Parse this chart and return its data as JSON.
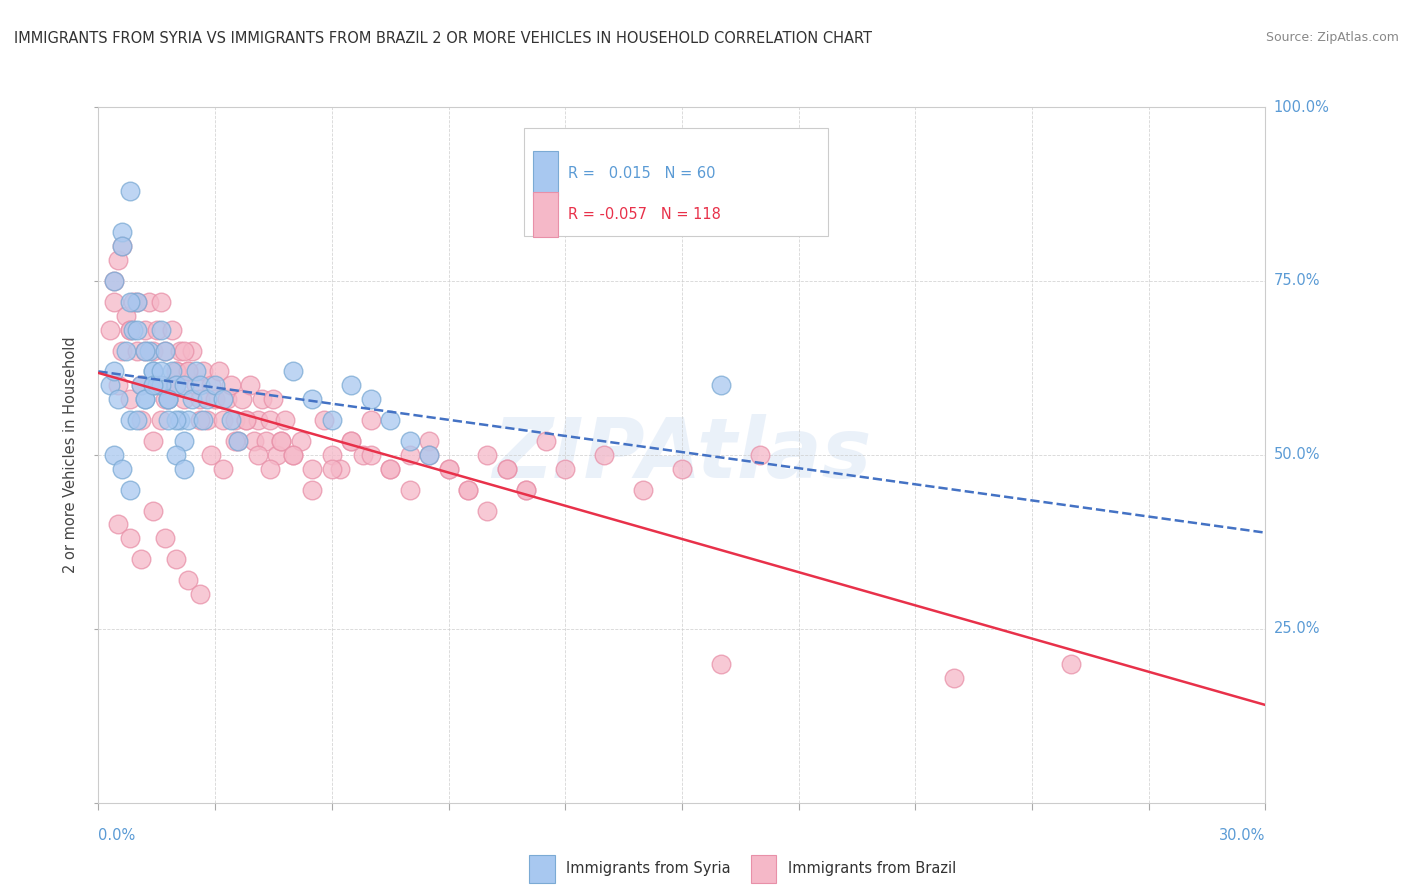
{
  "title": "IMMIGRANTS FROM SYRIA VS IMMIGRANTS FROM BRAZIL 2 OR MORE VEHICLES IN HOUSEHOLD CORRELATION CHART",
  "source": "Source: ZipAtlas.com",
  "xmin": 0.0,
  "xmax": 0.3,
  "ymin": 0.0,
  "ymax": 1.0,
  "syria_color": "#a8c8f0",
  "brazil_color": "#f5b8c8",
  "syria_edge_color": "#7baad4",
  "brazil_edge_color": "#e890a8",
  "syria_line_color": "#4472c4",
  "brazil_line_color": "#e8314a",
  "syria_R": 0.015,
  "syria_N": 60,
  "brazil_R": -0.057,
  "brazil_N": 118,
  "watermark": "ZIPAtlas",
  "syria_points_x": [
    0.003,
    0.004,
    0.005,
    0.006,
    0.007,
    0.008,
    0.009,
    0.01,
    0.011,
    0.012,
    0.013,
    0.014,
    0.015,
    0.016,
    0.017,
    0.018,
    0.019,
    0.02,
    0.021,
    0.022,
    0.023,
    0.024,
    0.025,
    0.026,
    0.027,
    0.028,
    0.03,
    0.032,
    0.034,
    0.036,
    0.004,
    0.006,
    0.008,
    0.01,
    0.012,
    0.014,
    0.016,
    0.018,
    0.02,
    0.022,
    0.004,
    0.006,
    0.008,
    0.01,
    0.012,
    0.014,
    0.016,
    0.018,
    0.02,
    0.022,
    0.05,
    0.055,
    0.06,
    0.065,
    0.07,
    0.075,
    0.08,
    0.085,
    0.16,
    0.008
  ],
  "syria_points_y": [
    0.6,
    0.62,
    0.58,
    0.82,
    0.65,
    0.55,
    0.68,
    0.72,
    0.6,
    0.58,
    0.65,
    0.62,
    0.6,
    0.68,
    0.65,
    0.58,
    0.62,
    0.6,
    0.55,
    0.6,
    0.55,
    0.58,
    0.62,
    0.6,
    0.55,
    0.58,
    0.6,
    0.58,
    0.55,
    0.52,
    0.75,
    0.8,
    0.72,
    0.68,
    0.65,
    0.62,
    0.6,
    0.58,
    0.55,
    0.52,
    0.5,
    0.48,
    0.45,
    0.55,
    0.58,
    0.6,
    0.62,
    0.55,
    0.5,
    0.48,
    0.62,
    0.58,
    0.55,
    0.6,
    0.58,
    0.55,
    0.52,
    0.5,
    0.6,
    0.88
  ],
  "brazil_points_x": [
    0.003,
    0.004,
    0.005,
    0.006,
    0.007,
    0.008,
    0.009,
    0.01,
    0.011,
    0.012,
    0.013,
    0.014,
    0.015,
    0.016,
    0.017,
    0.018,
    0.019,
    0.02,
    0.021,
    0.022,
    0.023,
    0.024,
    0.025,
    0.026,
    0.027,
    0.028,
    0.029,
    0.03,
    0.031,
    0.032,
    0.033,
    0.034,
    0.035,
    0.036,
    0.037,
    0.038,
    0.039,
    0.04,
    0.041,
    0.042,
    0.043,
    0.044,
    0.045,
    0.046,
    0.047,
    0.048,
    0.05,
    0.052,
    0.055,
    0.058,
    0.06,
    0.062,
    0.065,
    0.068,
    0.07,
    0.075,
    0.08,
    0.085,
    0.09,
    0.095,
    0.1,
    0.105,
    0.11,
    0.115,
    0.12,
    0.13,
    0.14,
    0.15,
    0.16,
    0.17,
    0.004,
    0.006,
    0.008,
    0.01,
    0.012,
    0.014,
    0.016,
    0.018,
    0.02,
    0.022,
    0.005,
    0.008,
    0.011,
    0.014,
    0.017,
    0.02,
    0.023,
    0.026,
    0.029,
    0.032,
    0.035,
    0.038,
    0.041,
    0.044,
    0.047,
    0.05,
    0.055,
    0.06,
    0.065,
    0.07,
    0.075,
    0.08,
    0.085,
    0.09,
    0.095,
    0.1,
    0.105,
    0.11,
    0.22,
    0.25,
    0.005,
    0.008,
    0.011,
    0.014,
    0.017,
    0.02,
    0.023,
    0.026
  ],
  "brazil_points_y": [
    0.68,
    0.72,
    0.78,
    0.65,
    0.7,
    0.68,
    0.72,
    0.65,
    0.6,
    0.68,
    0.72,
    0.65,
    0.68,
    0.72,
    0.65,
    0.6,
    0.68,
    0.62,
    0.65,
    0.58,
    0.62,
    0.65,
    0.6,
    0.58,
    0.62,
    0.55,
    0.6,
    0.58,
    0.62,
    0.55,
    0.58,
    0.6,
    0.55,
    0.52,
    0.58,
    0.55,
    0.6,
    0.52,
    0.55,
    0.58,
    0.52,
    0.55,
    0.58,
    0.5,
    0.52,
    0.55,
    0.5,
    0.52,
    0.48,
    0.55,
    0.5,
    0.48,
    0.52,
    0.5,
    0.55,
    0.48,
    0.5,
    0.52,
    0.48,
    0.45,
    0.5,
    0.48,
    0.45,
    0.52,
    0.48,
    0.5,
    0.45,
    0.48,
    0.2,
    0.5,
    0.75,
    0.8,
    0.68,
    0.72,
    0.65,
    0.6,
    0.55,
    0.58,
    0.62,
    0.65,
    0.6,
    0.58,
    0.55,
    0.52,
    0.58,
    0.6,
    0.62,
    0.55,
    0.5,
    0.48,
    0.52,
    0.55,
    0.5,
    0.48,
    0.52,
    0.5,
    0.45,
    0.48,
    0.52,
    0.5,
    0.48,
    0.45,
    0.5,
    0.48,
    0.45,
    0.42,
    0.48,
    0.45,
    0.18,
    0.2,
    0.4,
    0.38,
    0.35,
    0.42,
    0.38,
    0.35,
    0.32,
    0.3
  ]
}
